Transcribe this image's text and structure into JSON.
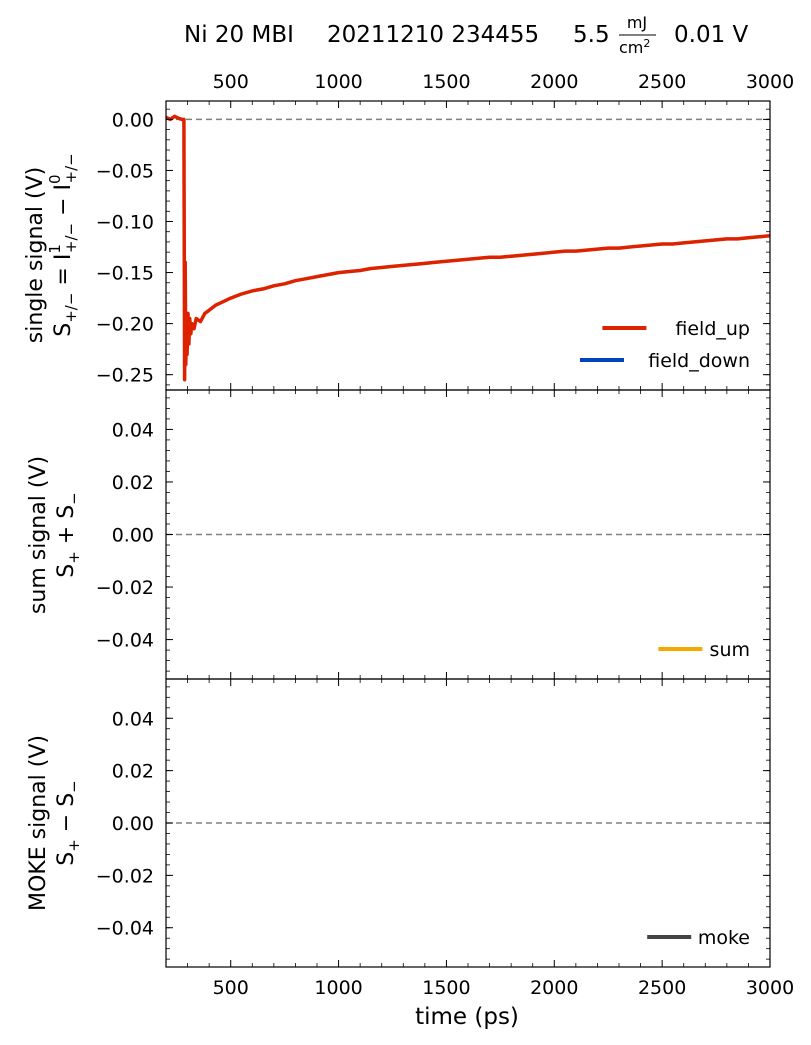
{
  "chart_data": {
    "title": {
      "sample": "Ni 20 MBI",
      "datetime": "20211210 234455",
      "fluence_value": "5.5",
      "fluence_unit_num": "mJ",
      "fluence_unit_den": "cm",
      "fluence_unit_exp": "2",
      "voltage": "0.01 V"
    },
    "top_axis_ticks": [
      "500",
      "1000",
      "1500",
      "2000",
      "2500",
      "3000"
    ],
    "xlabel": "time (ps)",
    "xlim": [
      200,
      3000
    ],
    "x_ticks": [
      500,
      1000,
      1500,
      2000,
      2500,
      3000
    ],
    "x_tick_labels": [
      "500",
      "1000",
      "1500",
      "2000",
      "2500",
      "3000"
    ],
    "panels": [
      {
        "id": "single",
        "type": "line",
        "ylabel_main": "single signal  (V)",
        "ylabel_formula": {
          "S": "S",
          "S_sub": "+/−",
          "eq": " = I",
          "I1_sup": "1",
          "I1_sub": "+/−",
          "minus": " − I",
          "I0_sup": "0",
          "I0_sub": "+/−"
        },
        "ylim": [
          -0.265,
          0.018
        ],
        "y_ticks": [
          0.0,
          -0.05,
          -0.1,
          -0.15,
          -0.2,
          -0.25
        ],
        "y_tick_labels": [
          "0.00",
          "−0.05",
          "−0.10",
          "−0.15",
          "−0.20",
          "−0.25"
        ],
        "zero_line": 0,
        "legend_position": "lower-right",
        "series": [
          {
            "name": "field_up",
            "color": "#dd2200",
            "x": [
              200,
              220,
              240,
              260,
              275,
              283,
              286,
              289,
              292,
              295,
              298,
              302,
              306,
              310,
              315,
              320,
              330,
              340,
              360,
              380,
              400,
              430,
              460,
              500,
              550,
              600,
              650,
              700,
              750,
              800,
              850,
              900,
              950,
              1000,
              1050,
              1100,
              1150,
              1200,
              1250,
              1300,
              1350,
              1400,
              1450,
              1500,
              1550,
              1600,
              1650,
              1700,
              1750,
              1800,
              1850,
              1900,
              1950,
              2000,
              2050,
              2100,
              2150,
              2200,
              2250,
              2300,
              2350,
              2400,
              2450,
              2500,
              2550,
              2600,
              2650,
              2700,
              2750,
              2800,
              2850,
              2900,
              2950,
              3000
            ],
            "y": [
              0.002,
              0.0,
              0.003,
              0.001,
              0.0,
              0.0,
              -0.255,
              -0.14,
              -0.24,
              -0.2,
              -0.23,
              -0.19,
              -0.22,
              -0.195,
              -0.21,
              -0.2,
              -0.205,
              -0.195,
              -0.198,
              -0.19,
              -0.187,
              -0.182,
              -0.179,
              -0.175,
              -0.171,
              -0.168,
              -0.166,
              -0.163,
              -0.161,
              -0.158,
              -0.156,
              -0.154,
              -0.152,
              -0.15,
              -0.149,
              -0.148,
              -0.146,
              -0.145,
              -0.144,
              -0.143,
              -0.142,
              -0.141,
              -0.14,
              -0.139,
              -0.138,
              -0.137,
              -0.136,
              -0.135,
              -0.135,
              -0.134,
              -0.133,
              -0.132,
              -0.131,
              -0.13,
              -0.129,
              -0.129,
              -0.128,
              -0.127,
              -0.126,
              -0.126,
              -0.125,
              -0.124,
              -0.123,
              -0.122,
              -0.122,
              -0.121,
              -0.12,
              -0.119,
              -0.118,
              -0.117,
              -0.117,
              -0.116,
              -0.115,
              -0.114
            ]
          },
          {
            "name": "field_down",
            "color": "#0044bb",
            "x": [],
            "y": []
          }
        ]
      },
      {
        "id": "sum",
        "type": "line",
        "ylabel_main": "sum signal  (V)",
        "ylabel_formula": {
          "a": "S",
          "a_sub": "+",
          "op": " + S",
          "b_sub": "−"
        },
        "ylim": [
          -0.055,
          0.055
        ],
        "y_ticks": [
          0.04,
          0.02,
          0.0,
          -0.02,
          -0.04
        ],
        "y_tick_labels": [
          "0.04",
          "0.02",
          "0.00",
          "−0.02",
          "−0.04"
        ],
        "zero_line": 0,
        "legend_position": "lower-right",
        "series": [
          {
            "name": "sum",
            "color": "#f5a800",
            "x": [],
            "y": []
          }
        ]
      },
      {
        "id": "moke",
        "type": "line",
        "ylabel_main": "MOKE signal (V)",
        "ylabel_formula": {
          "a": "S",
          "a_sub": "+",
          "op": " − S",
          "b_sub": "−"
        },
        "ylim": [
          -0.055,
          0.055
        ],
        "y_ticks": [
          0.04,
          0.02,
          0.0,
          -0.02,
          -0.04
        ],
        "y_tick_labels": [
          "0.04",
          "0.02",
          "0.00",
          "−0.02",
          "−0.04"
        ],
        "zero_line": 0,
        "legend_position": "lower-right",
        "series": [
          {
            "name": "moke",
            "color": "#444444",
            "x": [],
            "y": []
          }
        ]
      }
    ]
  }
}
